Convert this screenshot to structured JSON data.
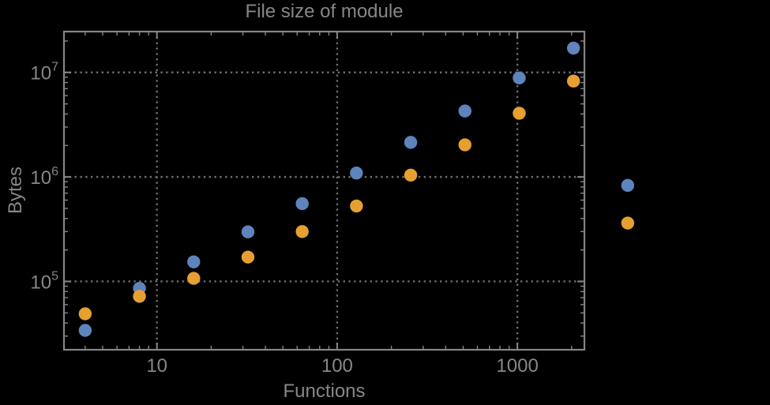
{
  "colors": {
    "background": "#000000",
    "frame": "#858585",
    "grid": "#6d6d6d",
    "text": "#878787",
    "series_blue": "#5e84bd",
    "series_orange": "#e6a031"
  },
  "chart_data": {
    "type": "scatter",
    "title": "File size of module",
    "xlabel": "Functions",
    "ylabel": "Bytes",
    "x_scale": "log",
    "y_scale": "log",
    "grid": "dotted",
    "legend": "none",
    "xlim": [
      3.05,
      2355
    ],
    "ylim": [
      22200,
      24600000
    ],
    "x": [
      4,
      8,
      16,
      32,
      64,
      128,
      256,
      512,
      1024,
      2048,
      4096
    ],
    "series": [
      {
        "name": "blue",
        "color": "#5e84bd",
        "values": [
          34000,
          86000,
          154000,
          298000,
          555000,
          1090000,
          2140000,
          4280000,
          8860000,
          17100000,
          830000
        ]
      },
      {
        "name": "orange",
        "color": "#e6a031",
        "values": [
          49000,
          72000,
          107000,
          171000,
          300000,
          527000,
          1040000,
          2030000,
          4070000,
          8270000,
          362000
        ]
      }
    ],
    "x_ticks": [
      {
        "value": 10,
        "label": "10"
      },
      {
        "value": 100,
        "label": "100"
      },
      {
        "value": 1000,
        "label": "1000"
      }
    ],
    "y_ticks": [
      {
        "value": 100000,
        "base": "10",
        "exp": "5"
      },
      {
        "value": 1000000,
        "base": "10",
        "exp": "6"
      },
      {
        "value": 10000000,
        "base": "10",
        "exp": "7"
      }
    ]
  }
}
